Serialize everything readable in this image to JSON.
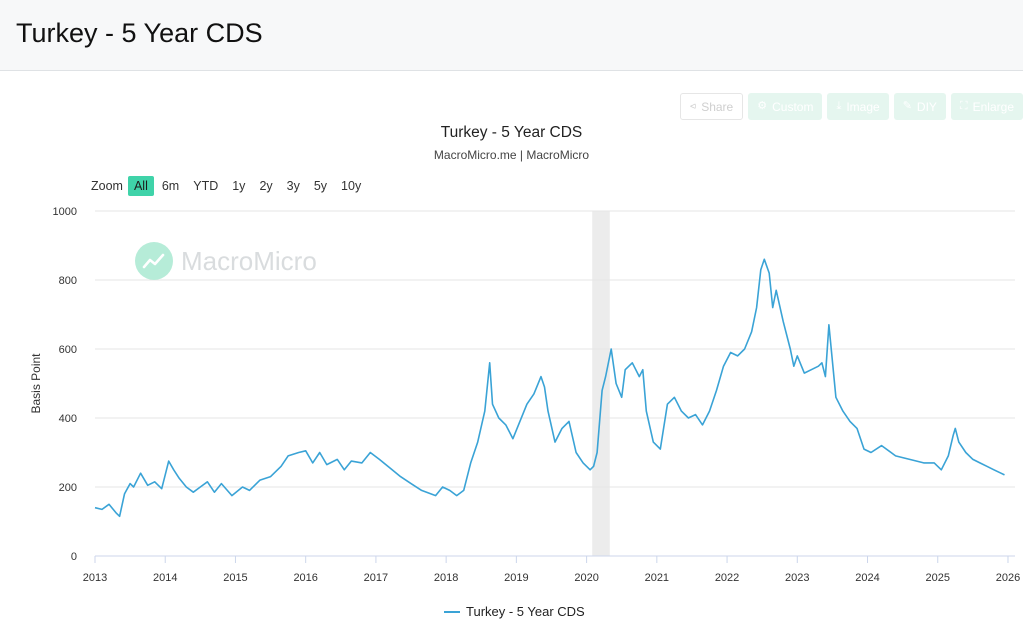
{
  "page": {
    "title": "Turkey - 5 Year CDS"
  },
  "toolbar": {
    "share": "Share",
    "custom": "Custom",
    "image": "Image",
    "diy": "DIY",
    "enlarge": "Enlarge"
  },
  "zoom": {
    "label": "Zoom",
    "options": [
      "All",
      "6m",
      "YTD",
      "1y",
      "2y",
      "3y",
      "5y",
      "10y"
    ],
    "selected": "All"
  },
  "watermark": {
    "text": "MacroMicro"
  },
  "colors": {
    "series": "#3aa3d6",
    "accent": "#3fd3a9",
    "recession": "#ececec"
  },
  "chart_data": {
    "type": "line",
    "title": "Turkey - 5 Year CDS",
    "subtitle": "MacroMicro.me | MacroMicro",
    "xlabel": "",
    "ylabel": "Basis Point",
    "xlim": [
      2013.0,
      2026.1
    ],
    "ylim": [
      0,
      1000
    ],
    "x_ticks": [
      "2013",
      "2014",
      "2015",
      "2016",
      "2017",
      "2018",
      "2019",
      "2020",
      "2021",
      "2022",
      "2023",
      "2024",
      "2025",
      "2026"
    ],
    "y_ticks": [
      "0",
      "200",
      "400",
      "600",
      "800",
      "1000"
    ],
    "grid": true,
    "legend": "bottom-center",
    "shaded_periods": [
      [
        2020.08,
        2020.33
      ]
    ],
    "series": [
      {
        "name": "Turkey - 5 Year CDS",
        "x": [
          2013.0,
          2013.1,
          2013.2,
          2013.3,
          2013.35,
          2013.42,
          2013.5,
          2013.55,
          2013.65,
          2013.75,
          2013.85,
          2013.95,
          2014.0,
          2014.05,
          2014.12,
          2014.2,
          2014.3,
          2014.4,
          2014.5,
          2014.6,
          2014.7,
          2014.8,
          2014.95,
          2015.1,
          2015.2,
          2015.35,
          2015.5,
          2015.65,
          2015.75,
          2015.9,
          2016.0,
          2016.1,
          2016.2,
          2016.3,
          2016.45,
          2016.55,
          2016.65,
          2016.8,
          2016.92,
          2017.05,
          2017.2,
          2017.35,
          2017.5,
          2017.65,
          2017.85,
          2017.95,
          2018.05,
          2018.15,
          2018.25,
          2018.35,
          2018.45,
          2018.55,
          2018.62,
          2018.66,
          2018.75,
          2018.85,
          2018.95,
          2019.05,
          2019.15,
          2019.25,
          2019.35,
          2019.4,
          2019.45,
          2019.55,
          2019.65,
          2019.75,
          2019.85,
          2019.95,
          2020.05,
          2020.1,
          2020.15,
          2020.22,
          2020.27,
          2020.35,
          2020.42,
          2020.5,
          2020.55,
          2020.65,
          2020.75,
          2020.8,
          2020.85,
          2020.95,
          2021.05,
          2021.15,
          2021.25,
          2021.35,
          2021.45,
          2021.55,
          2021.65,
          2021.75,
          2021.85,
          2021.95,
          2022.05,
          2022.15,
          2022.25,
          2022.35,
          2022.42,
          2022.48,
          2022.53,
          2022.6,
          2022.65,
          2022.7,
          2022.8,
          2022.9,
          2022.95,
          2023.0,
          2023.1,
          2023.2,
          2023.3,
          2023.35,
          2023.4,
          2023.45,
          2023.55,
          2023.65,
          2023.75,
          2023.85,
          2023.95,
          2024.05,
          2024.2,
          2024.4,
          2024.6,
          2024.8,
          2024.95,
          2025.05,
          2025.15,
          2025.22,
          2025.25,
          2025.3,
          2025.4,
          2025.5,
          2025.6,
          2025.7,
          2025.8,
          2025.9,
          2025.95
        ],
        "y": [
          140,
          135,
          150,
          125,
          115,
          180,
          210,
          200,
          240,
          205,
          215,
          195,
          235,
          275,
          250,
          225,
          200,
          185,
          200,
          215,
          185,
          210,
          175,
          200,
          190,
          220,
          230,
          260,
          290,
          300,
          305,
          270,
          300,
          265,
          280,
          250,
          275,
          270,
          300,
          280,
          255,
          230,
          210,
          190,
          175,
          200,
          190,
          175,
          190,
          270,
          330,
          420,
          560,
          440,
          400,
          380,
          340,
          390,
          440,
          470,
          520,
          490,
          420,
          330,
          370,
          390,
          300,
          270,
          250,
          260,
          300,
          480,
          520,
          600,
          500,
          460,
          540,
          560,
          520,
          540,
          420,
          330,
          310,
          440,
          460,
          420,
          400,
          410,
          380,
          420,
          480,
          550,
          590,
          580,
          600,
          650,
          720,
          830,
          860,
          820,
          720,
          770,
          680,
          600,
          550,
          580,
          530,
          540,
          550,
          560,
          520,
          670,
          460,
          420,
          390,
          370,
          310,
          300,
          320,
          290,
          280,
          270,
          270,
          250,
          290,
          350,
          370,
          330,
          300,
          280,
          270,
          260,
          250,
          240,
          235
        ]
      }
    ]
  }
}
